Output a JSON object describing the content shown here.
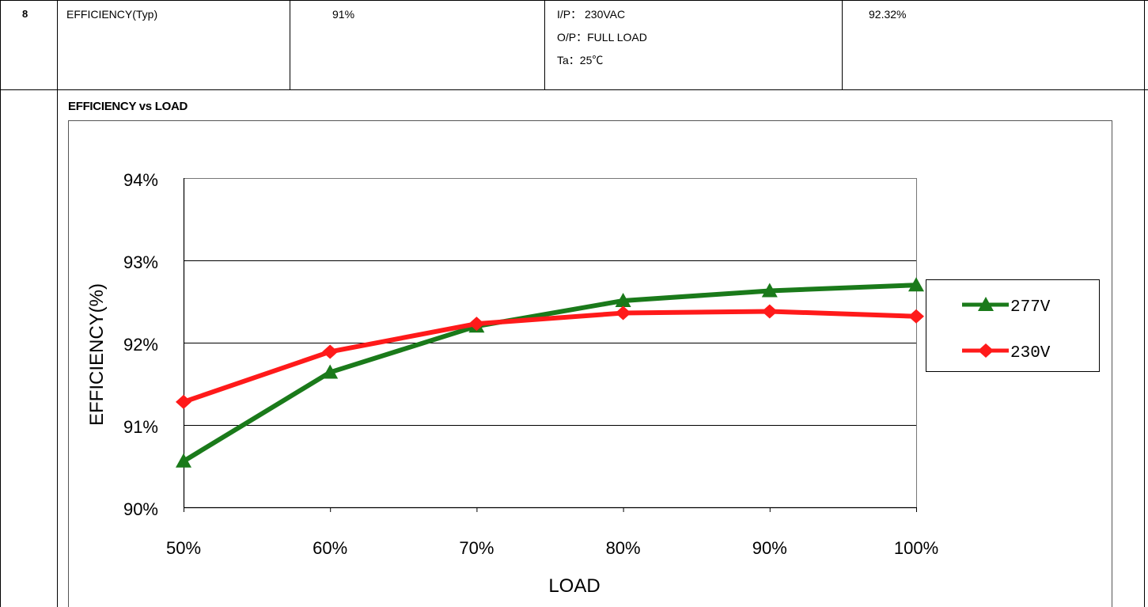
{
  "spec_row": {
    "number": "8",
    "parameter": "EFFICIENCY(Typ)",
    "spec": "91%",
    "conditions": [
      "I/P：   230VAC",
      "O/P：FULL LOAD",
      "Ta：25℃"
    ],
    "measured": "92.32%"
  },
  "chart_data": {
    "type": "line",
    "title": "EFFICIENCY vs LOAD",
    "xlabel": "LOAD",
    "ylabel": "EFFICIENCY(%)",
    "categories": [
      "50%",
      "60%",
      "70%",
      "80%",
      "90%",
      "100%"
    ],
    "ylim": [
      90,
      94
    ],
    "yticks": [
      "90%",
      "91%",
      "92%",
      "93%",
      "94%"
    ],
    "grid": true,
    "legend_position": "right",
    "series": [
      {
        "name": "277V",
        "values": [
          90.56,
          91.64,
          92.2,
          92.51,
          92.63,
          92.7
        ],
        "color": "#1a7a1a",
        "marker": "triangle"
      },
      {
        "name": "230V",
        "values": [
          91.28,
          91.89,
          92.23,
          92.36,
          92.38,
          92.32
        ],
        "color": "#ff1a1a",
        "marker": "diamond"
      }
    ]
  }
}
